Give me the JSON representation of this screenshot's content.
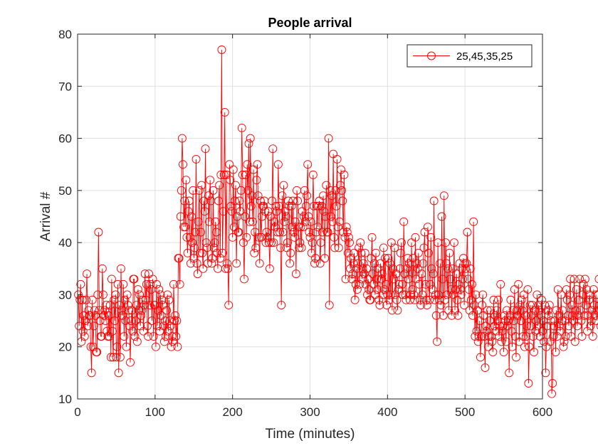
{
  "chart_data": {
    "type": "line",
    "title": "People arrival",
    "xlabel": "Time (minutes)",
    "ylabel": "Arrival #",
    "xlim": [
      0,
      600
    ],
    "ylim": [
      10,
      80
    ],
    "xticks": [
      0,
      100,
      200,
      300,
      400,
      500,
      600
    ],
    "yticks": [
      10,
      20,
      30,
      40,
      50,
      60,
      70,
      80
    ],
    "grid": true,
    "legend_position": "top-right",
    "series": [
      {
        "name": "25,45,35,25",
        "color": "#ff0000",
        "marker": "circle",
        "x_start": 1,
        "x_step": 1,
        "values": [
          30,
          24,
          29,
          32,
          21,
          29,
          23,
          26,
          22,
          25,
          29,
          34,
          24,
          27,
          26,
          26,
          20,
          15,
          29,
          20,
          24,
          27,
          26,
          19,
          19,
          30,
          42,
          27,
          25,
          22,
          22,
          35,
          30,
          26,
          27,
          25,
          28,
          23,
          22,
          26,
          22,
          28,
          18,
          33,
          23,
          18,
          29,
          25,
          30,
          18,
          20,
          32,
          15,
          28,
          18,
          35,
          27,
          26,
          32,
          22,
          29,
          25,
          20,
          30,
          28,
          27,
          24,
          17,
          25,
          27,
          23,
          33,
          33,
          22,
          25,
          28,
          21,
          31,
          27,
          30,
          24,
          26,
          27,
          29,
          23,
          28,
          34,
          29,
          32,
          24,
          22,
          34,
          28,
          32,
          31,
          25,
          33,
          22,
          28,
          28,
          20,
          32,
          24,
          27,
          31,
          23,
          30,
          26,
          29,
          28,
          24,
          21,
          25,
          22,
          27,
          30,
          23,
          29,
          25,
          24,
          20,
          22,
          21,
          32,
          25,
          26,
          22,
          25,
          20,
          37,
          37,
          32,
          45,
          50,
          60,
          55,
          43,
          48,
          43,
          52,
          41,
          38,
          46,
          48,
          41,
          36,
          45,
          40,
          50,
          37,
          39,
          42,
          56,
          36,
          34,
          44,
          50,
          38,
          42,
          51,
          38,
          35,
          48,
          46,
          58,
          40,
          39,
          36,
          49,
          44,
          52,
          48,
          36,
          37,
          50,
          39,
          40,
          44,
          42,
          38,
          35,
          48,
          51,
          37,
          53,
          77,
          38,
          46,
          53,
          65,
          35,
          53,
          36,
          35,
          28,
          55,
          52,
          47,
          46,
          41,
          54,
          43,
          48,
          51,
          36,
          45,
          42,
          42,
          48,
          46,
          50,
          62,
          53,
          40,
          33,
          45,
          53,
          41,
          55,
          50,
          59,
          44,
          60,
          47,
          49,
          44,
          54,
          38,
          42,
          39,
          52,
          55,
          49,
          41,
          36,
          48,
          41,
          45,
          47,
          47,
          48,
          46,
          40,
          42,
          41,
          46,
          40,
          35,
          45,
          40,
          48,
          58,
          40,
          44,
          43,
          47,
          46,
          42,
          55,
          47,
          42,
          39,
          28,
          49,
          42,
          51,
          44,
          46,
          45,
          39,
          40,
          48,
          47,
          36,
          38,
          47,
          43,
          48,
          42,
          41,
          44,
          34,
          50,
          48,
          43,
          39,
          40,
          43,
          39,
          46,
          43,
          45,
          50,
          44,
          47,
          49,
          55,
          45,
          42,
          41,
          44,
          38,
          40,
          53,
          47,
          36,
          37,
          42,
          47,
          43,
          47,
          48,
          36,
          40,
          47,
          42,
          49,
          46,
          37,
          45,
          51,
          42,
          42,
          60,
          28,
          50,
          45,
          49,
          44,
          57,
          41,
          39,
          50,
          47,
          56,
          43,
          39,
          44,
          51,
          54,
          50,
          48,
          42,
          53,
          41,
          33,
          43,
          42,
          38,
          41,
          40,
          35,
          37,
          33,
          34,
          36,
          38,
          29,
          32,
          35,
          31,
          36,
          39,
          32,
          40,
          38,
          33,
          35,
          36,
          34,
          38,
          32,
          35,
          30,
          33,
          31,
          29,
          29,
          37,
          41,
          34,
          32,
          36,
          30,
          38,
          33,
          31,
          35,
          29,
          28,
          36,
          33,
          34,
          30,
          39,
          31,
          37,
          32,
          28,
          30,
          37,
          29,
          36,
          30,
          40,
          27,
          35,
          33,
          39,
          30,
          34,
          29,
          27,
          31,
          32,
          35,
          38,
          40,
          32,
          30,
          44,
          34,
          30,
          29,
          35,
          37,
          33,
          36,
          29,
          30,
          40,
          31,
          37,
          30,
          29,
          41,
          33,
          36,
          35,
          38,
          32,
          29,
          28,
          34,
          30,
          36,
          39,
          42,
          32,
          29,
          28,
          43,
          38,
          29,
          32,
          41,
          35,
          31,
          34,
          48,
          29,
          30,
          26,
          21,
          40,
          30,
          29,
          36,
          28,
          45,
          33,
          26,
          49,
          29,
          40,
          36,
          30,
          35,
          27,
          38,
          33,
          31,
          26,
          35,
          30,
          40,
          27,
          31,
          34,
          29,
          26,
          32,
          36,
          31,
          30,
          35,
          33,
          37,
          28,
          36,
          35,
          36,
          42,
          33,
          31,
          27,
          35,
          29,
          32,
          26,
          44,
          28,
          22,
          30,
          23,
          27,
          21,
          22,
          25,
          18,
          22,
          28,
          30,
          26,
          22,
          16,
          24,
          23,
          27,
          20,
          22,
          25,
          27,
          22,
          21,
          19,
          29,
          24,
          26,
          23,
          27,
          25,
          29,
          22,
          24,
          32,
          21,
          23,
          24,
          19,
          26,
          25,
          21,
          27,
          24,
          25,
          15,
          26,
          29,
          23,
          20,
          27,
          25,
          31,
          22,
          18,
          27,
          26,
          32,
          21,
          28,
          25,
          29,
          27,
          22,
          30,
          20,
          26,
          22,
          24,
          31,
          13,
          20,
          28,
          24,
          26,
          28,
          22,
          19,
          27,
          23,
          25,
          30,
          24,
          28,
          27,
          22,
          26,
          29,
          23,
          25,
          21,
          28,
          15,
          20,
          24,
          27,
          26,
          28,
          21,
          25,
          11,
          13,
          22,
          24,
          25,
          19,
          27,
          22,
          31,
          26,
          24,
          23,
          30,
          25,
          27,
          20,
          21,
          25,
          22,
          31,
          29,
          26,
          24,
          30,
          33,
          22,
          28,
          26,
          25,
          33,
          21,
          27,
          31,
          24,
          26,
          29,
          33,
          27,
          25,
          22,
          30,
          32,
          26,
          33,
          28,
          31,
          23,
          26,
          29,
          30,
          24,
          25,
          27,
          22,
          31,
          28,
          26,
          30,
          25,
          27,
          30,
          33,
          28,
          24,
          26,
          20,
          23,
          29,
          22,
          25,
          24,
          33,
          27,
          22,
          26,
          30,
          27,
          28,
          24,
          27,
          16,
          26,
          31,
          25,
          28,
          21,
          24,
          27,
          26,
          22,
          17,
          27,
          30,
          25,
          28,
          22,
          26,
          33,
          30,
          24,
          28,
          22,
          29,
          23,
          18,
          26,
          24,
          25,
          28,
          23,
          15,
          22,
          27,
          24,
          28,
          30,
          26,
          25,
          29,
          20,
          23,
          39,
          30,
          27,
          28,
          24,
          25,
          22,
          26,
          32,
          29,
          34,
          22,
          33,
          28,
          24,
          33,
          27,
          26,
          25,
          24,
          30,
          24,
          35,
          29,
          32,
          23,
          29,
          25,
          28,
          21
        ]
      }
    ]
  }
}
